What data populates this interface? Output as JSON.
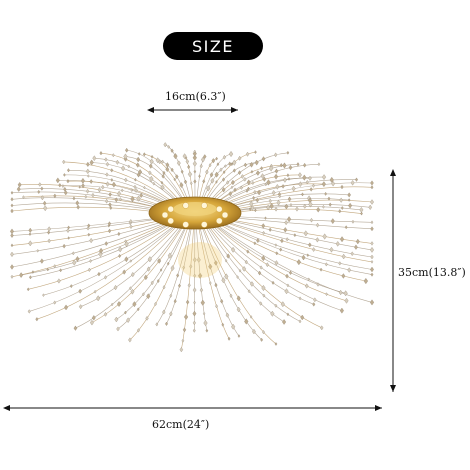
{
  "badge": {
    "label": "SIZE"
  },
  "dimensions": {
    "top_width": "16cm(6.3″)",
    "height": "35cm(13.8″)",
    "total_width": "62cm(24″)"
  },
  "colors": {
    "badge_bg": "#000000",
    "badge_text": "#ffffff",
    "gold": "#d6a63a",
    "wire": "#a89a86",
    "crystal": "#c9c0b2"
  }
}
